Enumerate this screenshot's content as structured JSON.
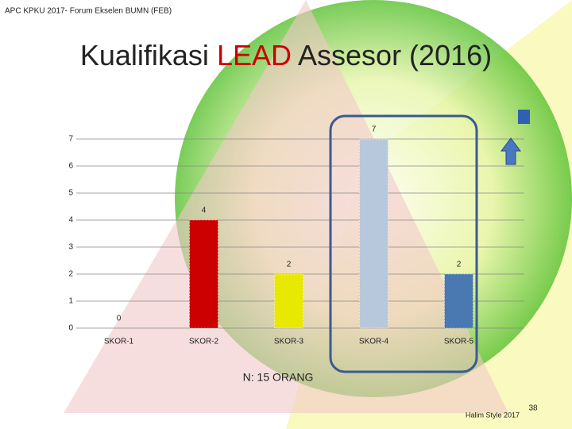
{
  "slide": {
    "header": "APC KPKU 2017- Forum Ekselen BUMN (FEB)",
    "footer": "Halim Style 2017",
    "page": "38"
  },
  "chart_data": {
    "type": "bar",
    "title": [
      "Kualifikasi",
      "LEAD",
      "Assesor (2016)"
    ],
    "title_colors": [
      "#222222",
      "#cc0000",
      "#222222"
    ],
    "categories": [
      "SKOR-1",
      "SKOR-2",
      "SKOR-3",
      "SKOR-4",
      "SKOR-5"
    ],
    "values": [
      0,
      4,
      2,
      7,
      2
    ],
    "colors": [
      "#999999",
      "#cc0000",
      "#e8e800",
      "#b8c8dc",
      "#4a78b0"
    ],
    "ylim": [
      0,
      7
    ],
    "yticks": [
      0,
      1,
      2,
      3,
      4,
      5,
      6,
      7
    ],
    "grid": true,
    "annotation": "N: 15 ORANG"
  }
}
